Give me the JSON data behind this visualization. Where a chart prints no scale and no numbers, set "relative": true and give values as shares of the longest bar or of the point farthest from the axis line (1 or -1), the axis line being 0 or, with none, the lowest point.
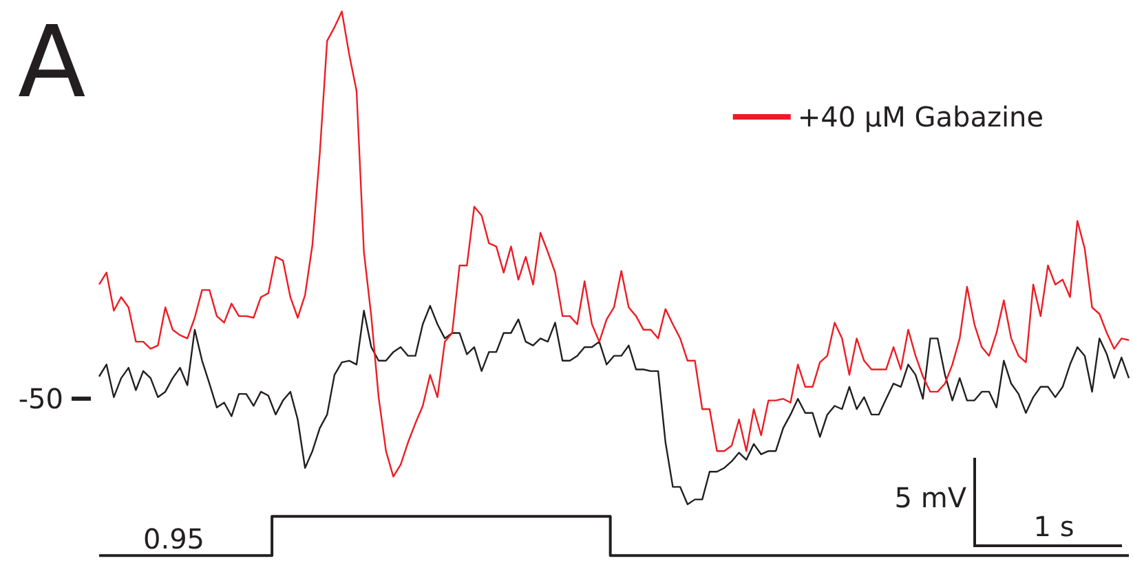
{
  "chart_data": {
    "type": "line",
    "title": "A",
    "relative": true,
    "annotations": [
      "0.95",
      "5 mV",
      "1 s",
      "-50"
    ],
    "legend": "top right",
    "marker": "none",
    "line_style": "solid",
    "categories": [
      null,
      null,
      null,
      null,
      null,
      null,
      null,
      null,
      null,
      null,
      null,
      null,
      null,
      null,
      null,
      null,
      null,
      null,
      null,
      null,
      null,
      null,
      null,
      null,
      null,
      null,
      null,
      null,
      null,
      null,
      null,
      null,
      null,
      null,
      null,
      null,
      null,
      null,
      null,
      null,
      null,
      null,
      null,
      null,
      null,
      null,
      null,
      null,
      null,
      null,
      null,
      null,
      null,
      null,
      null,
      null,
      null,
      null,
      null,
      null,
      null,
      null,
      null,
      null,
      null,
      null,
      null,
      null,
      null,
      null,
      null,
      null,
      null,
      null,
      null,
      null,
      null,
      null,
      null,
      null,
      null,
      null,
      null,
      null,
      null,
      null,
      null,
      null,
      null,
      null,
      null,
      null,
      null,
      null,
      null,
      null,
      null,
      null,
      null,
      null,
      null,
      null,
      null,
      null,
      null,
      null,
      null,
      null,
      null,
      null,
      null,
      null,
      null,
      null,
      null,
      null,
      null,
      null,
      null,
      null,
      null,
      null,
      null,
      null,
      null,
      null,
      null,
      null,
      null,
      null,
      null,
      null,
      null,
      null,
      null,
      null,
      null,
      null,
      null,
      null,
      null
    ],
    "series": [
      {
        "color": "#231f20",
        "values": [
          0.329,
          0.351,
          0.291,
          0.326,
          0.345,
          0.304,
          0.339,
          0.326,
          0.291,
          0.301,
          0.326,
          0.345,
          0.313,
          0.415,
          0.358,
          0.316,
          0.272,
          0.281,
          0.256,
          0.297,
          0.297,
          0.275,
          0.301,
          0.294,
          0.259,
          0.285,
          0.301,
          0.25,
          0.161,
          0.192,
          0.234,
          0.259,
          0.332,
          0.355,
          0.358,
          0.351,
          0.45,
          0.383,
          0.358,
          0.358,
          0.374,
          0.383,
          0.367,
          0.367,
          0.425,
          0.459,
          0.425,
          0.399,
          0.409,
          0.409,
          0.37,
          0.383,
          0.339,
          0.374,
          0.374,
          0.409,
          0.409,
          0.434,
          0.393,
          0.386,
          0.399,
          0.393,
          0.428,
          0.358,
          0.358,
          0.367,
          0.383,
          0.383,
          0.393,
          0.351,
          0.367,
          0.367,
          0.386,
          0.342,
          0.342,
          0.339,
          0.339,
          0.208,
          0.126,
          0.126,
          0.094,
          0.103,
          0.103,
          0.154,
          0.154,
          0.161,
          0.173,
          0.189,
          0.176,
          0.205,
          0.186,
          0.192,
          0.192,
          0.234,
          0.259,
          0.288,
          0.262,
          0.262,
          0.218,
          0.259,
          0.275,
          0.269,
          0.31,
          0.269,
          0.291,
          0.259,
          0.259,
          0.288,
          0.316,
          0.31,
          0.351,
          0.332,
          0.288,
          0.399,
          0.399,
          0.332,
          0.285,
          0.326,
          0.285,
          0.285,
          0.301,
          0.301,
          0.272,
          0.358,
          0.316,
          0.297,
          0.262,
          0.291,
          0.31,
          0.31,
          0.291,
          0.31,
          0.351,
          0.383,
          0.367,
          0.301,
          0.399,
          0.37,
          0.326,
          0.364,
          0.326
        ]
      },
      {
        "name": "+40 µM Gabazine",
        "color": "#ed1c24",
        "values": [
          0.498,
          0.52,
          0.45,
          0.475,
          0.456,
          0.393,
          0.393,
          0.38,
          0.386,
          0.456,
          0.415,
          0.405,
          0.399,
          0.437,
          0.488,
          0.488,
          0.44,
          0.428,
          0.463,
          0.44,
          0.44,
          0.437,
          0.475,
          0.482,
          0.549,
          0.542,
          0.475,
          0.437,
          0.479,
          0.571,
          0.739,
          0.946,
          0.971,
          1,
          0.921,
          0.854,
          0.558,
          0.44,
          0.291,
          0.192,
          0.145,
          0.167,
          0.208,
          0.243,
          0.275,
          0.332,
          0.291,
          0.393,
          0.409,
          0.533,
          0.533,
          0.641,
          0.625,
          0.574,
          0.568,
          0.52,
          0.568,
          0.507,
          0.549,
          0.498,
          0.593,
          0.558,
          0.52,
          0.44,
          0.44,
          0.425,
          0.504,
          0.425,
          0.393,
          0.434,
          0.456,
          0.523,
          0.456,
          0.44,
          0.415,
          0.415,
          0.399,
          0.453,
          0.425,
          0.399,
          0.358,
          0.358,
          0.269,
          0.269,
          0.192,
          0.192,
          0.202,
          0.25,
          0.192,
          0.269,
          0.221,
          0.285,
          0.285,
          0.288,
          0.281,
          0.351,
          0.31,
          0.31,
          0.355,
          0.367,
          0.428,
          0.399,
          0.332,
          0.399,
          0.358,
          0.342,
          0.342,
          0.342,
          0.383,
          0.342,
          0.415,
          0.367,
          0.329,
          0.301,
          0.301,
          0.316,
          0.351,
          0.399,
          0.494,
          0.425,
          0.383,
          0.367,
          0.409,
          0.469,
          0.399,
          0.367,
          0.355,
          0.498,
          0.44,
          0.533,
          0.498,
          0.507,
          0.475,
          0.615,
          0.564,
          0.456,
          0.444,
          0.409,
          0.38,
          0.399,
          0.396
        ]
      },
      {
        "type": "step",
        "color": "#231f20",
        "values": [
          0,
          0,
          0,
          0,
          0,
          0,
          0,
          0,
          0,
          0,
          0,
          0,
          0,
          0,
          0,
          0,
          0,
          0,
          0,
          0,
          0,
          0,
          0,
          0,
          0.072,
          0.072,
          0.072,
          0.072,
          0.072,
          0.072,
          0.072,
          0.072,
          0.072,
          0.072,
          0.072,
          0.072,
          0.072,
          0.072,
          0.072,
          0.072,
          0.072,
          0.072,
          0.072,
          0.072,
          0.072,
          0.072,
          0.072,
          0.072,
          0.072,
          0.072,
          0.072,
          0.072,
          0.072,
          0.072,
          0.072,
          0.072,
          0.072,
          0.072,
          0.072,
          0.072,
          0.072,
          0.072,
          0.072,
          0.072,
          0.072,
          0.072,
          0.072,
          0.072,
          0.072,
          0.072,
          0,
          0,
          0,
          0,
          0,
          0,
          0,
          0,
          0,
          0,
          0,
          0,
          0,
          0,
          0,
          0,
          0,
          0,
          0,
          0,
          0,
          0,
          0,
          0,
          0,
          0,
          0,
          0,
          0,
          0,
          0,
          0,
          0,
          0,
          0,
          0,
          0,
          0,
          0,
          0,
          0,
          0,
          0,
          0,
          0,
          0,
          0,
          0,
          0,
          0,
          0,
          0,
          0,
          0,
          0,
          0,
          0,
          0,
          0,
          0,
          0,
          0,
          0,
          0,
          0,
          0,
          0,
          0,
          0,
          0,
          0
        ]
      }
    ]
  }
}
